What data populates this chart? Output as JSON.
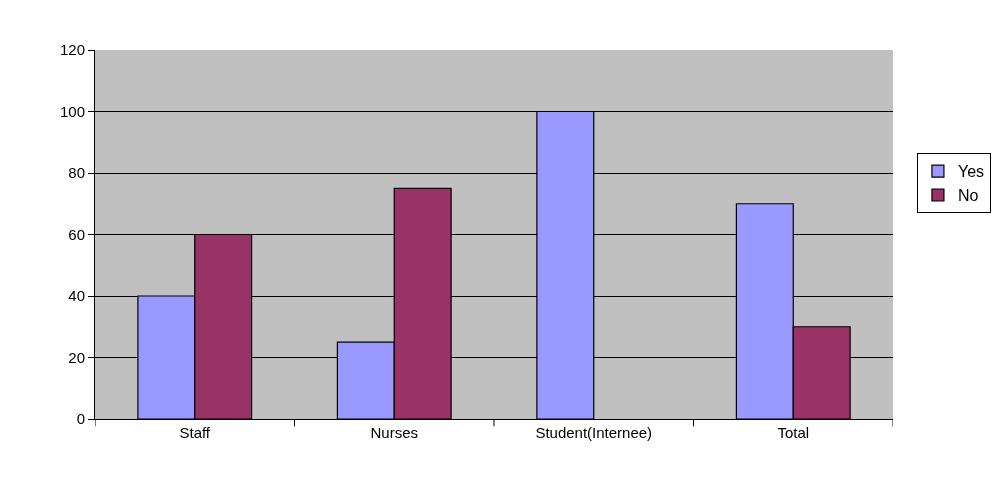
{
  "chart_data": {
    "type": "bar",
    "categories": [
      "Staff",
      "Nurses",
      "Student(Internee)",
      "Total"
    ],
    "series": [
      {
        "name": "Yes",
        "color": "#9999ff",
        "values": [
          40,
          25,
          100,
          70
        ]
      },
      {
        "name": "No",
        "color": "#993366",
        "values": [
          60,
          75,
          0,
          30
        ]
      }
    ],
    "ylim": [
      0,
      120
    ],
    "yticks": [
      0,
      20,
      40,
      60,
      80,
      100,
      120
    ],
    "grid": "y",
    "legend": "right"
  }
}
